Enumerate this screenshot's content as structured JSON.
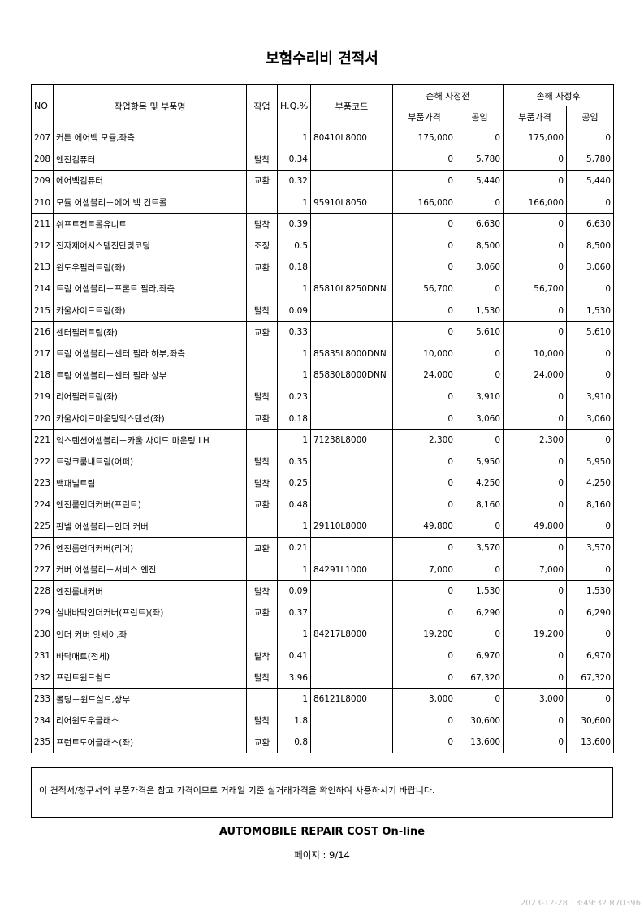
{
  "header": {
    "title": "보험수리비 견적서"
  },
  "table": {
    "columns": {
      "no": "NO",
      "item": "작업항목 및 부품명",
      "work": "작업",
      "hq": "H.Q.%",
      "code": "부품코드",
      "before": "손해 사정전",
      "after": "손해 사정후",
      "parts": "부품가격",
      "labor": "공임"
    },
    "rows": [
      [
        "207",
        "커튼 에어백 모듈,좌측",
        null,
        "1",
        "80410L8000",
        "175,000",
        "0",
        "175,000",
        "0"
      ],
      [
        "208",
        "엔진컴퓨터",
        "탈착",
        "0.34",
        null,
        "0",
        "5,780",
        "0",
        "5,780"
      ],
      [
        "209",
        "에어백컴퓨터",
        "교환",
        "0.32",
        null,
        "0",
        "5,440",
        "0",
        "5,440"
      ],
      [
        "210",
        "모듈 어셈블리－에어 백 컨트롤",
        null,
        "1",
        "95910L8050",
        "166,000",
        "0",
        "166,000",
        "0"
      ],
      [
        "211",
        "쉬프트컨트롤유니트",
        "탈착",
        "0.39",
        null,
        "0",
        "6,630",
        "0",
        "6,630"
      ],
      [
        "212",
        "전자제어시스템진단및코딩",
        "조정",
        "0.5",
        null,
        "0",
        "8,500",
        "0",
        "8,500"
      ],
      [
        "213",
        "윈도우필러트림(좌)",
        "교환",
        "0.18",
        null,
        "0",
        "3,060",
        "0",
        "3,060"
      ],
      [
        "214",
        "트림 어셈블리－프론트 필라,좌측",
        null,
        "1",
        "85810L8250DNN",
        "56,700",
        "0",
        "56,700",
        "0"
      ],
      [
        "215",
        "카울사이드트림(좌)",
        "탈착",
        "0.09",
        null,
        "0",
        "1,530",
        "0",
        "1,530"
      ],
      [
        "216",
        "센터필러트림(좌)",
        "교환",
        "0.33",
        null,
        "0",
        "5,610",
        "0",
        "5,610"
      ],
      [
        "217",
        "트림 어셈블리－센터 필라 하부,좌측",
        null,
        "1",
        "85835L8000DNN",
        "10,000",
        "0",
        "10,000",
        "0"
      ],
      [
        "218",
        "트림 어셈블리－센터 필라 상부",
        null,
        "1",
        "85830L8000DNN",
        "24,000",
        "0",
        "24,000",
        "0"
      ],
      [
        "219",
        "리어필러트림(좌)",
        "탈착",
        "0.23",
        null,
        "0",
        "3,910",
        "0",
        "3,910"
      ],
      [
        "220",
        "카울사이드마운팅익스텐션(좌)",
        "교환",
        "0.18",
        null,
        "0",
        "3,060",
        "0",
        "3,060"
      ],
      [
        "221",
        "익스텐션어셈블리－카울 사이드 마운팅 LH",
        null,
        "1",
        "71238L8000",
        "2,300",
        "0",
        "2,300",
        "0"
      ],
      [
        "222",
        "트렁크룸내트림(어퍼)",
        "탈착",
        "0.35",
        null,
        "0",
        "5,950",
        "0",
        "5,950"
      ],
      [
        "223",
        "백패널트림",
        "탈착",
        "0.25",
        null,
        "0",
        "4,250",
        "0",
        "4,250"
      ],
      [
        "224",
        "엔진룸언더커버(프런트)",
        "교환",
        "0.48",
        null,
        "0",
        "8,160",
        "0",
        "8,160"
      ],
      [
        "225",
        "판넬 어셈블리－언더 커버",
        null,
        "1",
        "29110L8000",
        "49,800",
        "0",
        "49,800",
        "0"
      ],
      [
        "226",
        "엔진룸언더커버(리어)",
        "교환",
        "0.21",
        null,
        "0",
        "3,570",
        "0",
        "3,570"
      ],
      [
        "227",
        "커버 어셈블리－서비스 엔진",
        null,
        "1",
        "84291L1000",
        "7,000",
        "0",
        "7,000",
        "0"
      ],
      [
        "228",
        "엔진룸내커버",
        "탈착",
        "0.09",
        null,
        "0",
        "1,530",
        "0",
        "1,530"
      ],
      [
        "229",
        "실내바닥언더커버(프런트)(좌)",
        "교환",
        "0.37",
        null,
        "0",
        "6,290",
        "0",
        "6,290"
      ],
      [
        "230",
        "언더 커버 앗세이,좌",
        null,
        "1",
        "84217L8000",
        "19,200",
        "0",
        "19,200",
        "0"
      ],
      [
        "231",
        "바닥매트(전체)",
        "탈착",
        "0.41",
        null,
        "0",
        "6,970",
        "0",
        "6,970"
      ],
      [
        "232",
        "프런트윈드쉴드",
        "탈착",
        "3.96",
        null,
        "0",
        "67,320",
        "0",
        "67,320"
      ],
      [
        "233",
        "몰딩－윈드실드,상부",
        null,
        "1",
        "86121L8000",
        "3,000",
        "0",
        "3,000",
        "0"
      ],
      [
        "234",
        "리어윈도우글래스",
        "탈착",
        "1.8",
        null,
        "0",
        "30,600",
        "0",
        "30,600"
      ],
      [
        "235",
        "프런트도어글래스(좌)",
        "교환",
        "0.8",
        null,
        "0",
        "13,600",
        "0",
        "13,600"
      ]
    ]
  },
  "notice": "이 견적서/청구서의 부품가격은 참고 가격이므로 거래일 기준 실거래가격을 확인하여 사용하시기 바랍니다.",
  "footer": {
    "brand": "AUTOMOBILE REPAIR COST On-line",
    "page": "페이지 : 9/14",
    "timestamp": "2023-12-28  13:49:32  R70396"
  }
}
